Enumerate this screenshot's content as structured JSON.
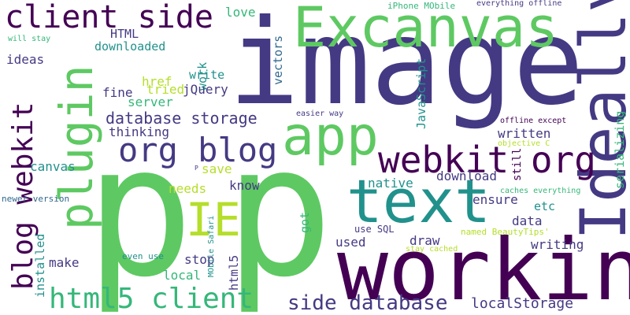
{
  "palette": {
    "indigo": "#443a83",
    "navy": "#31688e",
    "teal": "#21918c",
    "green": "#35b779",
    "lightgreen": "#5ec962",
    "lime": "#b5de2b",
    "purple": "#440154"
  },
  "words": [
    {
      "text": "p",
      "color": "lightgreen"
    },
    {
      "text": "p",
      "color": "lightgreen"
    },
    {
      "text": "image",
      "color": "indigo"
    },
    {
      "text": "working",
      "color": "purple"
    },
    {
      "text": "Excanvas",
      "color": "lightgreen"
    },
    {
      "text": "Ideally",
      "color": "indigo"
    },
    {
      "text": "text",
      "color": "teal"
    },
    {
      "text": "app",
      "color": "lightgreen"
    },
    {
      "text": "plugin",
      "color": "lightgreen"
    },
    {
      "text": "IE",
      "color": "lime"
    },
    {
      "text": "client side",
      "color": "purple"
    },
    {
      "text": "webkit org",
      "color": "purple"
    },
    {
      "text": "org blog",
      "color": "indigo"
    },
    {
      "text": "html5 client",
      "color": "green"
    },
    {
      "text": "blog webkit",
      "color": "purple"
    },
    {
      "text": "side database",
      "color": "indigo"
    },
    {
      "text": "database storage",
      "color": "indigo"
    },
    {
      "text": "localStorage",
      "color": "indigo"
    },
    {
      "text": "love",
      "color": "green"
    },
    {
      "text": "HTML",
      "color": "indigo"
    },
    {
      "text": "downloaded",
      "color": "teal"
    },
    {
      "text": "tried",
      "color": "lime"
    },
    {
      "text": "work",
      "color": "teal"
    },
    {
      "text": "vectors",
      "color": "navy"
    },
    {
      "text": "ideas",
      "color": "indigo"
    },
    {
      "text": "write",
      "color": "teal"
    },
    {
      "text": "fine",
      "color": "indigo"
    },
    {
      "text": "href",
      "color": "lime"
    },
    {
      "text": "jQuery",
      "color": "indigo"
    },
    {
      "text": "server",
      "color": "green"
    },
    {
      "text": "thinking",
      "color": "indigo"
    },
    {
      "text": "save",
      "color": "lime"
    },
    {
      "text": "canvas",
      "color": "teal"
    },
    {
      "text": "needs",
      "color": "lime"
    },
    {
      "text": "know",
      "color": "indigo"
    },
    {
      "text": "native",
      "color": "teal"
    },
    {
      "text": "download",
      "color": "indigo"
    },
    {
      "text": "ensure",
      "color": "indigo"
    },
    {
      "text": "etc",
      "color": "teal"
    },
    {
      "text": "data",
      "color": "indigo"
    },
    {
      "text": "draw",
      "color": "indigo"
    },
    {
      "text": "used",
      "color": "indigo"
    },
    {
      "text": "writing",
      "color": "indigo"
    },
    {
      "text": "make",
      "color": "indigo"
    },
    {
      "text": "stop",
      "color": "indigo"
    },
    {
      "text": "local",
      "color": "green"
    },
    {
      "text": "html5",
      "color": "indigo"
    },
    {
      "text": "got",
      "color": "green"
    },
    {
      "text": "installed",
      "color": "teal"
    },
    {
      "text": "JavaScript",
      "color": "teal"
    },
    {
      "text": "written",
      "color": "indigo"
    },
    {
      "text": "still",
      "color": "purple"
    },
    {
      "text": "serializing",
      "color": "green"
    },
    {
      "text": "iPhone MObile",
      "color": "green"
    },
    {
      "text": "everything offline",
      "color": "indigo"
    },
    {
      "text": "will stay",
      "color": "green"
    },
    {
      "text": "easier way",
      "color": "indigo"
    },
    {
      "text": "offline except",
      "color": "purple"
    },
    {
      "text": "objective C",
      "color": "lime"
    },
    {
      "text": "caches everything",
      "color": "green"
    },
    {
      "text": "named BeautyTips'",
      "color": "lime"
    },
    {
      "text": "stay cached",
      "color": "lime"
    },
    {
      "text": "use SQL",
      "color": "indigo"
    },
    {
      "text": "even use",
      "color": "teal"
    },
    {
      "text": "MObile Safari",
      "color": "teal"
    },
    {
      "text": "newer version",
      "color": "navy"
    },
    {
      "text": "P",
      "color": "indigo"
    }
  ]
}
